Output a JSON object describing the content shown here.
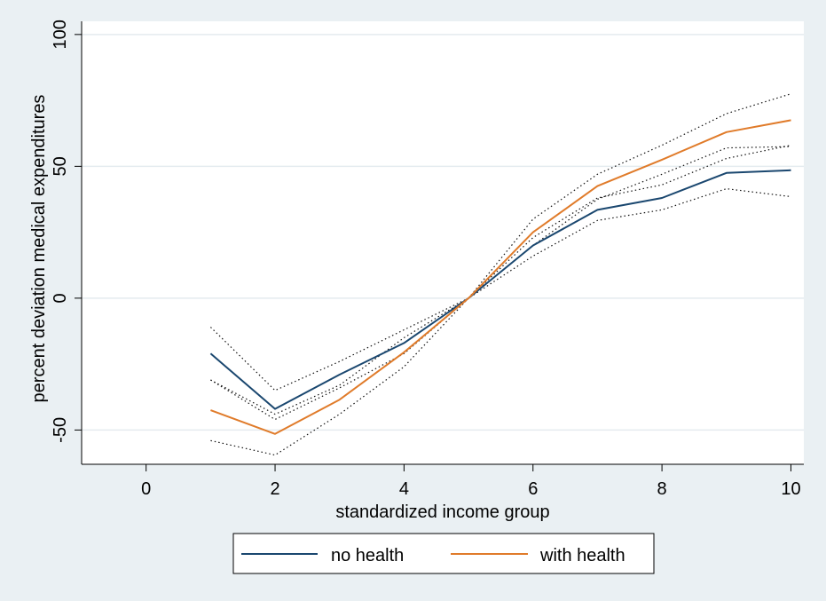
{
  "chart_data": {
    "type": "line",
    "xlabel": "standardized income group",
    "ylabel": "percent deviation medical expenditures",
    "xlim": [
      -1,
      10.2
    ],
    "ylim": [
      -63,
      105
    ],
    "x_ticks": [
      0,
      2,
      4,
      6,
      8,
      10
    ],
    "x_tick_labels": [
      "0",
      "2",
      "4",
      "6",
      "8",
      "10"
    ],
    "y_ticks": [
      -50,
      0,
      50,
      100
    ],
    "y_tick_labels": [
      "-50",
      "0",
      "50",
      "100"
    ],
    "grid": "horizontal",
    "legend_position": "bottom",
    "x": [
      1,
      2,
      3,
      4,
      5,
      6,
      7,
      8,
      9,
      10
    ],
    "series": [
      {
        "name": "no health",
        "color": "#1a476f",
        "style": "solid",
        "values": [
          -21,
          -42,
          -29,
          -17,
          0,
          20,
          33.5,
          38,
          47.5,
          48.5
        ],
        "ci_lower": [
          -31,
          -46,
          -34,
          -21,
          0,
          16,
          29.5,
          33.5,
          41.5,
          38.5
        ],
        "ci_upper": [
          -11,
          -35,
          -24,
          -12,
          0,
          23,
          38,
          43,
          53,
          58
        ]
      },
      {
        "name": "with health",
        "color": "#e07b2a",
        "style": "solid",
        "values": [
          -42.5,
          -51.5,
          -38.5,
          -20.5,
          0,
          25,
          42.5,
          52.5,
          63,
          67.5
        ],
        "ci_lower": [
          -54,
          -59.5,
          -44,
          -26,
          0,
          20,
          37.5,
          47,
          57,
          57.5
        ],
        "ci_upper": [
          -31,
          -44,
          -33,
          -15,
          0,
          30,
          47,
          58,
          70,
          77.5
        ]
      }
    ]
  }
}
